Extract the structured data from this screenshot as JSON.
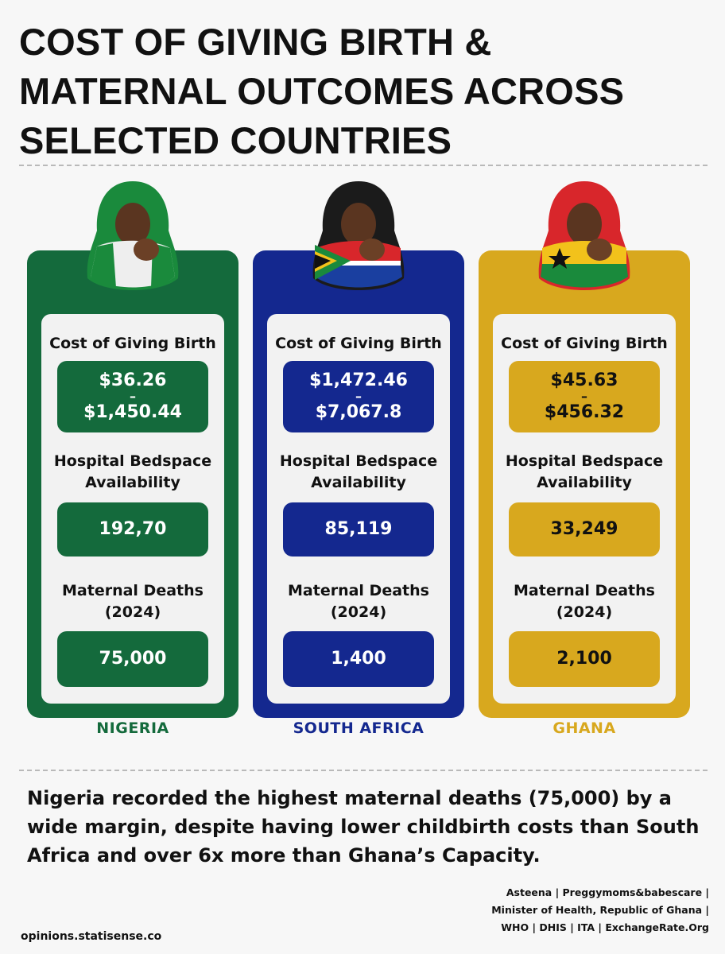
{
  "title": {
    "line1": "COST OF GIVING BIRTH &",
    "line2": "MATERNAL OUTCOMES ACROSS",
    "line3": "SELECTED COUNTRIES"
  },
  "labels": {
    "cost": "Cost of Giving Birth",
    "bed1": "Hospital Bedspace",
    "bed2": "Availability",
    "deaths1": "Maternal Deaths",
    "deaths2": "(2024)",
    "dash": "–"
  },
  "countries": [
    {
      "name": "NIGERIA",
      "cost_low": "$36.26",
      "cost_high": "$1,450.44",
      "beds": "192,70",
      "deaths": "75,000",
      "color": "#146a3c",
      "text_color": "#ffffff",
      "name_color": "#146a3c",
      "flag": "nigeria"
    },
    {
      "name": "SOUTH AFRICA",
      "cost_low": "$1,472.46",
      "cost_high": "$7,067.8",
      "beds": "85,119",
      "deaths": "1,400",
      "color": "#14288f",
      "text_color": "#ffffff",
      "name_color": "#14288f",
      "flag": "south-africa"
    },
    {
      "name": "GHANA",
      "cost_low": "$45.63",
      "cost_high": "$456.32",
      "beds": "33,249",
      "deaths": "2,100",
      "color": "#d8a81e",
      "text_color": "#111111",
      "name_color": "#d8a81e",
      "flag": "ghana"
    }
  ],
  "summary": "Nigeria recorded the highest maternal deaths (75,000) by a wide margin, despite having lower childbirth costs than South Africa and over 6x more than Ghana’s Capacity.",
  "footer": {
    "site": "opinions.statisense.co",
    "sources_line1": "Asteena | Preggymoms&babescare |",
    "sources_line2": "Minister of Health, Republic of Ghana |",
    "sources_line3": "WHO | DHIS | ITA | ExchangeRate.Org"
  }
}
